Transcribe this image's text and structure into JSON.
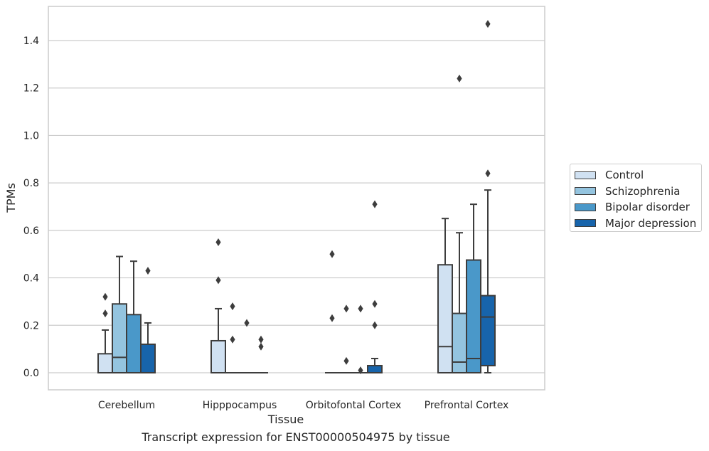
{
  "caption": "Transcript expression for ENST00000504975 by tissue",
  "chart_data": {
    "type": "box",
    "xlabel": "Tissue",
    "ylabel": "TPMs",
    "ylim": [
      -0.07,
      1.55
    ],
    "yticks": [
      "0.0",
      "0.2",
      "0.4",
      "0.6",
      "0.8",
      "1.0",
      "1.2",
      "1.4"
    ],
    "grid": "horizontal",
    "legend_placement": "right",
    "categories": [
      "Cerebellum",
      "Hipppocampus",
      "Orbitofontal Cortex",
      "Prefrontal Cortex"
    ],
    "series": [
      {
        "name": "Control",
        "color": "#d0e1f2",
        "boxes": [
          {
            "q1": 0.0,
            "median": 0.0,
            "q3": 0.08,
            "whisker_low": 0.0,
            "whisker_high": 0.18,
            "outliers": [
              0.25,
              0.32
            ]
          },
          {
            "q1": 0.0,
            "median": 0.0,
            "q3": 0.135,
            "whisker_low": 0.0,
            "whisker_high": 0.27,
            "outliers": [
              0.39,
              0.55
            ]
          },
          {
            "q1": 0.0,
            "median": 0.0,
            "q3": 0.0,
            "whisker_low": 0.0,
            "whisker_high": 0.0,
            "outliers": [
              0.23,
              0.5
            ]
          },
          {
            "q1": 0.0,
            "median": 0.11,
            "q3": 0.455,
            "whisker_low": 0.0,
            "whisker_high": 0.65,
            "outliers": []
          }
        ]
      },
      {
        "name": "Schizophrenia",
        "color": "#94c4df",
        "boxes": [
          {
            "q1": 0.0,
            "median": 0.065,
            "q3": 0.29,
            "whisker_low": 0.0,
            "whisker_high": 0.49,
            "outliers": []
          },
          {
            "q1": 0.0,
            "median": 0.0,
            "q3": 0.0,
            "whisker_low": 0.0,
            "whisker_high": 0.0,
            "outliers": [
              0.14,
              0.28
            ]
          },
          {
            "q1": 0.0,
            "median": 0.0,
            "q3": 0.0,
            "whisker_low": 0.0,
            "whisker_high": 0.0,
            "outliers": [
              0.05,
              0.27
            ]
          },
          {
            "q1": 0.0,
            "median": 0.045,
            "q3": 0.25,
            "whisker_low": 0.0,
            "whisker_high": 0.59,
            "outliers": [
              1.24
            ]
          }
        ]
      },
      {
        "name": "Bipolar disorder",
        "color": "#4a98c9",
        "boxes": [
          {
            "q1": 0.0,
            "median": 0.0,
            "q3": 0.245,
            "whisker_low": 0.0,
            "whisker_high": 0.47,
            "outliers": []
          },
          {
            "q1": 0.0,
            "median": 0.0,
            "q3": 0.0,
            "whisker_low": 0.0,
            "whisker_high": 0.0,
            "outliers": [
              0.21
            ]
          },
          {
            "q1": 0.0,
            "median": 0.0,
            "q3": 0.0,
            "whisker_low": 0.0,
            "whisker_high": 0.0,
            "outliers": [
              0.01,
              0.27
            ]
          },
          {
            "q1": 0.0,
            "median": 0.06,
            "q3": 0.475,
            "whisker_low": 0.0,
            "whisker_high": 0.71,
            "outliers": []
          }
        ]
      },
      {
        "name": "Major depression",
        "color": "#1764ab",
        "boxes": [
          {
            "q1": 0.0,
            "median": 0.0,
            "q3": 0.12,
            "whisker_low": 0.0,
            "whisker_high": 0.21,
            "outliers": [
              0.43
            ]
          },
          {
            "q1": 0.0,
            "median": 0.0,
            "q3": 0.0,
            "whisker_low": 0.0,
            "whisker_high": 0.0,
            "outliers": [
              0.11,
              0.14
            ]
          },
          {
            "q1": 0.0,
            "median": 0.0,
            "q3": 0.03,
            "whisker_low": 0.0,
            "whisker_high": 0.06,
            "outliers": [
              0.2,
              0.29,
              0.71
            ]
          },
          {
            "q1": 0.03,
            "median": 0.235,
            "q3": 0.325,
            "whisker_low": 0.0,
            "whisker_high": 0.77,
            "outliers": [
              0.84,
              1.47
            ]
          }
        ]
      }
    ]
  }
}
